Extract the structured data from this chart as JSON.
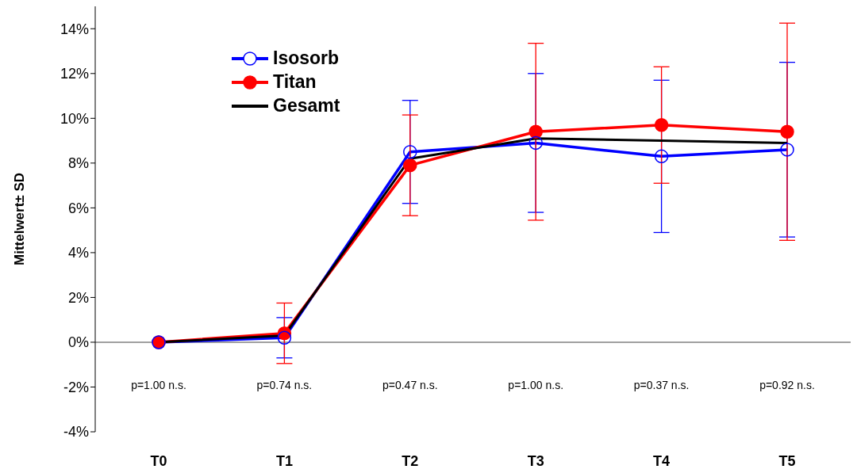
{
  "chart_data": {
    "type": "line",
    "ylabel": "Mittelwert± SD",
    "categories": [
      "T0",
      "T1",
      "T2",
      "T3",
      "T4",
      "T5"
    ],
    "series": [
      {
        "name": "Isosorb",
        "color": "#0000ff",
        "marker": "circle",
        "values": [
          0,
          0.2,
          8.5,
          8.9,
          8.3,
          8.6
        ],
        "errors": [
          null,
          0.9,
          2.3,
          3.1,
          3.4,
          3.9
        ]
      },
      {
        "name": "Titan",
        "color": "#ff0000",
        "marker": "circle",
        "values": [
          0,
          0.4,
          7.9,
          9.4,
          9.7,
          9.4
        ],
        "errors": [
          null,
          1.35,
          2.25,
          3.95,
          2.6,
          4.85
        ]
      },
      {
        "name": "Gesamt",
        "color": "#000000",
        "marker": "none",
        "values": [
          0,
          0.3,
          8.2,
          9.1,
          9.0,
          8.9
        ]
      }
    ],
    "ylim": [
      -4,
      15
    ],
    "yticks": [
      {
        "value": -4,
        "label": "-4%"
      },
      {
        "value": -2,
        "label": "-2%"
      },
      {
        "value": 0,
        "label": "0%"
      },
      {
        "value": 2,
        "label": "2%"
      },
      {
        "value": 4,
        "label": "4%"
      },
      {
        "value": 6,
        "label": "6%"
      },
      {
        "value": 8,
        "label": "8%"
      },
      {
        "value": 10,
        "label": "10%"
      },
      {
        "value": 12,
        "label": "12%"
      },
      {
        "value": 14,
        "label": "14%"
      }
    ],
    "ref_lines": [
      {
        "axis": "y",
        "value": 0,
        "color": "#808080"
      }
    ],
    "annotations": [
      "p=1.00 n.s.",
      "p=0.74 n.s.",
      "p=0.47 n.s.",
      "p=1.00 n.s.",
      "p=0.37 n.s.",
      "p=0.92 n.s."
    ],
    "legend": "top left",
    "grid": false
  }
}
